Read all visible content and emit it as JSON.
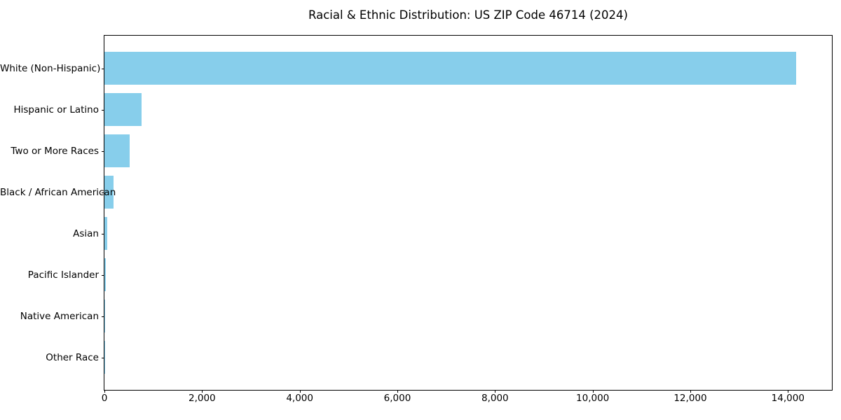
{
  "chart_data": {
    "type": "bar",
    "orientation": "horizontal",
    "title": "Racial & Ethnic Distribution: US ZIP Code 46714 (2024)",
    "categories": [
      "White (Non-Hispanic)",
      "Hispanic or Latino",
      "Two or More Races",
      "Black / African American",
      "Asian",
      "Pacific Islander",
      "Native American",
      "Other Race"
    ],
    "values": [
      14170,
      765,
      520,
      185,
      62,
      33,
      10,
      4
    ],
    "xlabel": "",
    "ylabel": "",
    "xlim": [
      0,
      14900
    ],
    "x_tick_values": [
      0,
      2000,
      4000,
      6000,
      8000,
      10000,
      12000,
      14000
    ],
    "x_tick_labels": [
      "0",
      "2,000",
      "4,000",
      "6,000",
      "8,000",
      "10,000",
      "12,000",
      "14,000"
    ],
    "grid": false,
    "legend": false,
    "bar_color": "#87CEEB",
    "background_color": "#FFFFFF",
    "spine_color": "#000000"
  }
}
